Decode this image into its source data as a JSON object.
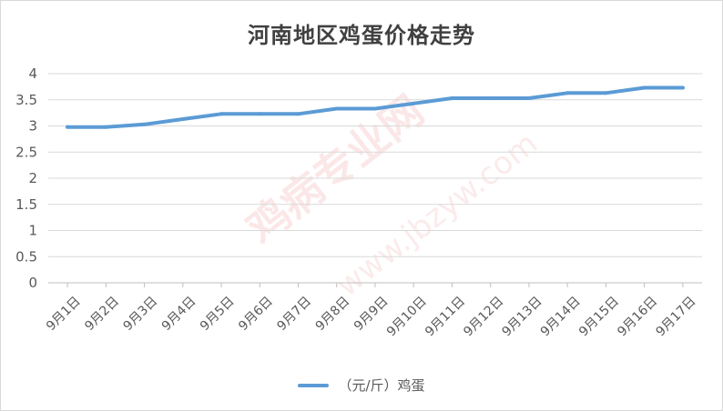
{
  "chart_data": {
    "type": "line",
    "title": "河南地区鸡蛋价格走势",
    "categories": [
      "9月1日",
      "9月2日",
      "9月3日",
      "9月4日",
      "9月5日",
      "9月6日",
      "9月7日",
      "9月8日",
      "9月9日",
      "9月10日",
      "9月11日",
      "9月12日",
      "9月13日",
      "9月14日",
      "9月15日",
      "9月16日",
      "9月17日"
    ],
    "series": [
      {
        "name": "（元/斤）鸡蛋",
        "values": [
          2.98,
          2.98,
          3.03,
          3.13,
          3.23,
          3.23,
          3.23,
          3.33,
          3.33,
          3.43,
          3.53,
          3.53,
          3.53,
          3.63,
          3.63,
          3.73,
          3.73
        ],
        "color": "#5b9bd5"
      }
    ],
    "ylim": [
      0,
      4
    ],
    "yticks": [
      0,
      0.5,
      1,
      1.5,
      2,
      2.5,
      3,
      3.5,
      4
    ],
    "grid": true,
    "legend_position": "bottom"
  },
  "watermark": {
    "text": "鸡病专业网",
    "url": "www.jbzyw.com"
  }
}
